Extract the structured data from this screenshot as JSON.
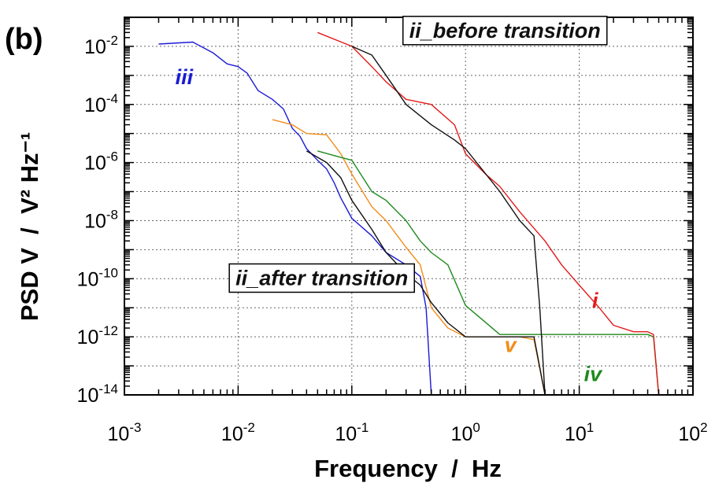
{
  "panel_label": "(b)",
  "chart_data": {
    "type": "line",
    "xscale": "log",
    "yscale": "log",
    "xlim": [
      0.001,
      100
    ],
    "ylim": [
      1e-14,
      0.1
    ],
    "grid": true,
    "xlabel": "Frequency  /  Hz",
    "ylabel": "PSD V  /  V² Hz⁻¹",
    "x_ticks": [
      {
        "value": 0.001,
        "base": "10",
        "exp": "-3"
      },
      {
        "value": 0.01,
        "base": "10",
        "exp": "-2"
      },
      {
        "value": 0.1,
        "base": "10",
        "exp": "-1"
      },
      {
        "value": 1,
        "base": "10",
        "exp": "0"
      },
      {
        "value": 10,
        "base": "10",
        "exp": "1"
      },
      {
        "value": 100,
        "base": "10",
        "exp": "2"
      }
    ],
    "y_ticks": [
      {
        "value": 0.01,
        "base": "10",
        "exp": "-2"
      },
      {
        "value": 0.0001,
        "base": "10",
        "exp": "-4"
      },
      {
        "value": 1e-06,
        "base": "10",
        "exp": "-6"
      },
      {
        "value": 1e-08,
        "base": "10",
        "exp": "-8"
      },
      {
        "value": 1e-10,
        "base": "10",
        "exp": "-10"
      },
      {
        "value": 1e-12,
        "base": "10",
        "exp": "-12"
      },
      {
        "value": 1e-14,
        "base": "10",
        "exp": "-14"
      }
    ],
    "series": [
      {
        "name": "iii",
        "color": "#1a1ad6",
        "points": [
          [
            0.002,
            0.012
          ],
          [
            0.004,
            0.014
          ],
          [
            0.006,
            0.006
          ],
          [
            0.008,
            0.0025
          ],
          [
            0.01,
            0.002
          ],
          [
            0.012,
            0.0012
          ],
          [
            0.015,
            0.0003
          ],
          [
            0.02,
            0.00015
          ],
          [
            0.025,
            7e-05
          ],
          [
            0.03,
            1.5e-05
          ],
          [
            0.035,
            8e-06
          ],
          [
            0.04,
            3e-06
          ],
          [
            0.05,
            1.2e-06
          ],
          [
            0.06,
            6e-07
          ],
          [
            0.07,
            2e-07
          ],
          [
            0.08,
            6e-08
          ],
          [
            0.1,
            1.2e-08
          ],
          [
            0.15,
            3e-09
          ],
          [
            0.2,
            8e-10
          ],
          [
            0.3,
            3e-10
          ],
          [
            0.4,
            1.2e-10
          ],
          [
            0.45,
            1e-11
          ],
          [
            0.5,
            1e-14
          ]
        ]
      },
      {
        "name": "v",
        "color": "#f28c1a",
        "points": [
          [
            0.02,
            3e-05
          ],
          [
            0.03,
            2e-05
          ],
          [
            0.04,
            1e-05
          ],
          [
            0.06,
            9e-06
          ],
          [
            0.08,
            2e-06
          ],
          [
            0.1,
            4e-07
          ],
          [
            0.15,
            3e-08
          ],
          [
            0.2,
            1e-08
          ],
          [
            0.3,
            1.2e-09
          ],
          [
            0.4,
            3e-10
          ],
          [
            0.5,
            1e-11
          ],
          [
            0.7,
            2e-12
          ],
          [
            1,
            1e-12
          ],
          [
            2,
            1e-12
          ],
          [
            3,
            1e-12
          ],
          [
            4,
            8e-13
          ],
          [
            5,
            1e-14
          ]
        ]
      },
      {
        "name": "iv",
        "color": "#1e8a1e",
        "points": [
          [
            0.05,
            2.5e-06
          ],
          [
            0.08,
            1.5e-06
          ],
          [
            0.1,
            1.2e-06
          ],
          [
            0.15,
            1e-07
          ],
          [
            0.2,
            5e-08
          ],
          [
            0.3,
            1e-08
          ],
          [
            0.4,
            2e-09
          ],
          [
            0.5,
            8e-10
          ],
          [
            0.7,
            3e-10
          ],
          [
            1,
            1.2e-11
          ],
          [
            2,
            1.2e-12
          ],
          [
            5,
            1.2e-12
          ],
          [
            10,
            1.2e-12
          ],
          [
            20,
            1.2e-12
          ],
          [
            40,
            1.2e-12
          ],
          [
            45,
            1e-12
          ],
          [
            50,
            1e-14
          ]
        ]
      },
      {
        "name": "i",
        "color": "#e41a1a",
        "points": [
          [
            0.05,
            0.03
          ],
          [
            0.1,
            0.01
          ],
          [
            0.15,
            0.002
          ],
          [
            0.2,
            0.0006
          ],
          [
            0.3,
            0.00015
          ],
          [
            0.5,
            0.0001
          ],
          [
            0.8,
            2e-05
          ],
          [
            1,
            2e-06
          ],
          [
            1.5,
            4e-07
          ],
          [
            2,
            1.5e-07
          ],
          [
            3,
            2e-08
          ],
          [
            5,
            2e-09
          ],
          [
            7,
            3e-10
          ],
          [
            10,
            6e-11
          ],
          [
            15,
            1e-11
          ],
          [
            20,
            2.5e-12
          ],
          [
            30,
            1.5e-12
          ],
          [
            40,
            1.5e-12
          ],
          [
            45,
            1.2e-12
          ],
          [
            50,
            1e-14
          ]
        ]
      },
      {
        "name": "ii_before transition",
        "color": "#111111",
        "points": [
          [
            0.1,
            0.01
          ],
          [
            0.15,
            0.005
          ],
          [
            0.2,
            0.001
          ],
          [
            0.3,
            0.0001
          ],
          [
            0.5,
            2e-05
          ],
          [
            0.8,
            6e-06
          ],
          [
            1,
            3e-06
          ],
          [
            2,
            1e-07
          ],
          [
            3,
            1e-08
          ],
          [
            4,
            3e-09
          ],
          [
            4.5,
            1e-11
          ],
          [
            5,
            1e-14
          ]
        ]
      },
      {
        "name": "ii_after transition",
        "color": "#111111",
        "points": [
          [
            0.04,
            2.5e-06
          ],
          [
            0.06,
            1e-06
          ],
          [
            0.08,
            3e-07
          ],
          [
            0.1,
            5e-08
          ],
          [
            0.15,
            5e-09
          ],
          [
            0.2,
            8e-10
          ],
          [
            0.3,
            1.5e-10
          ],
          [
            0.4,
            6e-11
          ],
          [
            0.5,
            1.5e-11
          ],
          [
            0.7,
            3e-12
          ],
          [
            1,
            1e-12
          ],
          [
            2,
            1e-12
          ],
          [
            4,
            1e-12
          ],
          [
            5,
            1e-14
          ]
        ]
      }
    ],
    "annotations": [
      {
        "text": "iii",
        "color": "#1a1ad6",
        "x": 0.0028,
        "y": 0.0005,
        "boxed": false
      },
      {
        "text": "ii_before transition",
        "color": "#111111",
        "x": 0.32,
        "y": 0.02,
        "boxed": true
      },
      {
        "text": "ii_after transition",
        "color": "#111111",
        "x": 0.0095,
        "y": 6e-11,
        "boxed": true
      },
      {
        "text": "i",
        "color": "#e41a1a",
        "x": 13,
        "y": 1e-11,
        "boxed": false
      },
      {
        "text": "v",
        "color": "#f28c1a",
        "x": 2.2,
        "y": 3e-13,
        "boxed": false
      },
      {
        "text": "iv",
        "color": "#1e8a1e",
        "x": 11,
        "y": 3e-14,
        "boxed": false
      }
    ]
  }
}
